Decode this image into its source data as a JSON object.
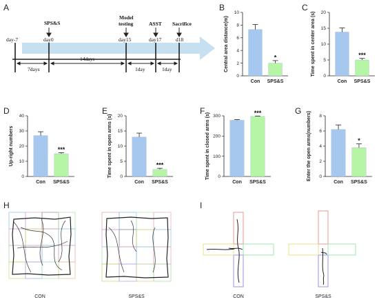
{
  "panels": {
    "A": "A",
    "B": "B",
    "C": "C",
    "D": "D",
    "E": "E",
    "F": "F",
    "G": "G",
    "H": "H",
    "I": "I"
  },
  "timeline": {
    "days": [
      "day-7",
      "day0",
      "day15",
      "day17",
      "d18"
    ],
    "events": [
      "SPS&S",
      "Model testing",
      "ASST",
      "Sacrifice"
    ],
    "intervals": [
      "7days",
      "14days",
      "1day",
      "1day"
    ]
  },
  "colors": {
    "con": "#a6c8ef",
    "sps": "#b7f5a6",
    "arrow": "#c6dff1"
  },
  "chart_data": [
    {
      "id": "B",
      "type": "bar",
      "categories": [
        "Con",
        "SPS&S"
      ],
      "values": [
        7.3,
        2.0
      ],
      "errors": [
        0.8,
        0.4
      ],
      "ylabel": "Central area distance(m)",
      "ylim": [
        0,
        10
      ],
      "yticks": [
        0,
        2,
        4,
        6,
        8,
        10
      ],
      "significance": [
        "",
        "*"
      ]
    },
    {
      "id": "C",
      "type": "bar",
      "categories": [
        "Con",
        "SPS&S"
      ],
      "values": [
        13.8,
        5.0
      ],
      "errors": [
        1.3,
        0.5
      ],
      "ylabel": "Time spent in center area (s)",
      "ylim": [
        0,
        20
      ],
      "yticks": [
        0,
        5,
        10,
        15,
        20
      ],
      "significance": [
        "",
        "***"
      ]
    },
    {
      "id": "D",
      "type": "bar",
      "categories": [
        "Con",
        "SPS&S"
      ],
      "values": [
        27,
        15
      ],
      "errors": [
        2.5,
        0.7
      ],
      "ylabel": "Up-right numbers",
      "ylim": [
        0,
        40
      ],
      "yticks": [
        0,
        10,
        20,
        30,
        40
      ],
      "significance": [
        "",
        "***"
      ]
    },
    {
      "id": "E",
      "type": "bar",
      "categories": [
        "Con",
        "SPS&S"
      ],
      "values": [
        13,
        2.3
      ],
      "errors": [
        1.3,
        0.4
      ],
      "ylabel": "Time spent in open arms (s)",
      "ylim": [
        0,
        20
      ],
      "yticks": [
        0,
        5,
        10,
        15,
        20
      ],
      "significance": [
        "",
        "***"
      ]
    },
    {
      "id": "F",
      "type": "bar",
      "categories": [
        "Con",
        "SPS&S"
      ],
      "values": [
        278,
        297
      ],
      "errors": [
        3,
        2
      ],
      "ylabel": "Time spent in closed arms (s)",
      "ylim": [
        0,
        300
      ],
      "yticks": [
        0,
        100,
        200,
        300
      ],
      "significance": [
        "",
        "***"
      ]
    },
    {
      "id": "G",
      "type": "bar",
      "categories": [
        "Con",
        "SPS&S"
      ],
      "values": [
        6.2,
        3.8
      ],
      "errors": [
        0.6,
        0.5
      ],
      "ylabel": "Enter the open arms(numbers)",
      "ylim": [
        0,
        8
      ],
      "yticks": [
        0,
        2,
        4,
        6,
        8
      ],
      "significance": [
        "",
        "*"
      ]
    }
  ],
  "track_labels": {
    "H": [
      "CON",
      "SPS&S"
    ],
    "I": [
      "CON",
      "SPS&S"
    ]
  }
}
